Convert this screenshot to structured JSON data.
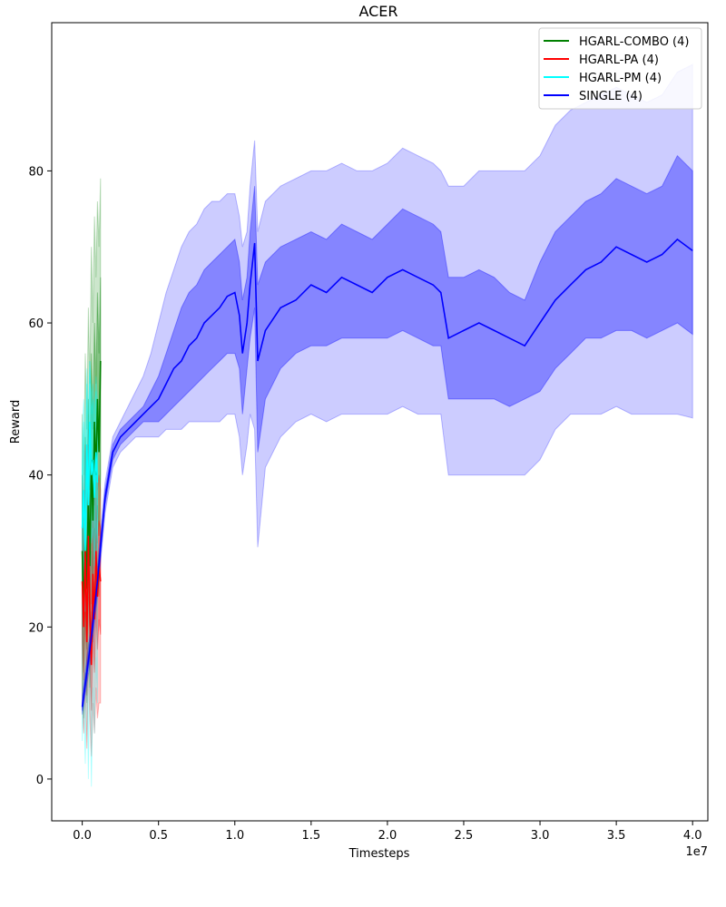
{
  "chart_data": {
    "type": "line",
    "title": "ACER",
    "xlabel": "Timesteps",
    "ylabel": "Reward",
    "x_offset_label": "1e7",
    "xlim": [
      -0.2,
      4.1
    ],
    "ylim": [
      -5.5,
      99.5
    ],
    "x_ticks": [
      0.0,
      0.5,
      1.0,
      1.5,
      2.0,
      2.5,
      3.0,
      3.5,
      4.0
    ],
    "x_tick_labels": [
      "0.0",
      "0.5",
      "1.0",
      "1.5",
      "2.0",
      "2.5",
      "3.0",
      "3.5",
      "4.0"
    ],
    "y_ticks": [
      0,
      20,
      40,
      60,
      80
    ],
    "y_tick_labels": [
      "0",
      "20",
      "40",
      "60",
      "80"
    ],
    "grid": false,
    "legend_position": "top-right",
    "series": [
      {
        "name": "HGARL-COMBO (4)",
        "color": "#008000",
        "x": [
          0.0,
          0.01,
          0.02,
          0.03,
          0.04,
          0.05,
          0.06,
          0.07,
          0.08,
          0.09,
          0.1,
          0.11,
          0.12
        ],
        "y": [
          30,
          21,
          33,
          25,
          38,
          28,
          42,
          34,
          47,
          40,
          50,
          43,
          55
        ],
        "std_low": [
          20,
          14,
          22,
          17,
          26,
          20,
          30,
          24,
          33,
          29,
          36,
          32,
          40
        ],
        "std_high": [
          40,
          30,
          45,
          36,
          50,
          38,
          56,
          46,
          60,
          52,
          64,
          56,
          66
        ],
        "min": [
          12,
          8,
          14,
          10,
          18,
          12,
          22,
          18,
          26,
          22,
          28,
          24,
          32
        ],
        "max": [
          48,
          40,
          56,
          46,
          62,
          52,
          70,
          60,
          74,
          66,
          76,
          70,
          79
        ]
      },
      {
        "name": "HGARL-PA (4)",
        "color": "#ff0000",
        "x": [
          0.0,
          0.01,
          0.02,
          0.03,
          0.04,
          0.05,
          0.06,
          0.07,
          0.08,
          0.09,
          0.1,
          0.11,
          0.12
        ],
        "y": [
          26,
          20,
          30,
          18,
          32,
          22,
          15,
          27,
          21,
          30,
          24,
          28,
          26
        ],
        "std_low": [
          18,
          13,
          22,
          11,
          24,
          15,
          9,
          19,
          14,
          22,
          17,
          21,
          19
        ],
        "std_high": [
          34,
          27,
          38,
          26,
          40,
          30,
          23,
          35,
          29,
          37,
          31,
          34,
          33
        ],
        "min": [
          10,
          6,
          12,
          4,
          14,
          8,
          3,
          10,
          6,
          12,
          8,
          10,
          10
        ],
        "max": [
          40,
          34,
          44,
          32,
          46,
          36,
          30,
          40,
          36,
          42,
          38,
          40,
          38
        ]
      },
      {
        "name": "HGARL-PM (4)",
        "color": "#00ffff",
        "x": [
          0.0,
          0.01,
          0.02,
          0.03,
          0.04,
          0.05,
          0.06,
          0.07,
          0.08,
          0.09,
          0.1
        ],
        "y": [
          33,
          38,
          30,
          44,
          36,
          47,
          40,
          42,
          37,
          43,
          39
        ],
        "std_low": [
          25,
          29,
          22,
          35,
          28,
          38,
          31,
          33,
          28,
          34,
          30
        ],
        "std_high": [
          41,
          47,
          38,
          52,
          44,
          55,
          48,
          50,
          45,
          51,
          47
        ],
        "min": [
          5,
          10,
          2,
          14,
          0,
          18,
          -1,
          12,
          6,
          16,
          10
        ],
        "max": [
          46,
          50,
          44,
          54,
          48,
          55,
          50,
          52,
          48,
          53,
          50
        ]
      },
      {
        "name": "SINGLE (4)",
        "color": "#0000ff",
        "x": [
          0.0,
          0.05,
          0.1,
          0.15,
          0.2,
          0.25,
          0.3,
          0.35,
          0.4,
          0.45,
          0.5,
          0.55,
          0.6,
          0.65,
          0.7,
          0.75,
          0.8,
          0.85,
          0.9,
          0.95,
          1.0,
          1.03,
          1.05,
          1.08,
          1.1,
          1.13,
          1.15,
          1.2,
          1.3,
          1.4,
          1.5,
          1.6,
          1.7,
          1.8,
          1.9,
          2.0,
          2.1,
          2.2,
          2.3,
          2.35,
          2.4,
          2.5,
          2.6,
          2.7,
          2.8,
          2.9,
          3.0,
          3.1,
          3.2,
          3.3,
          3.4,
          3.5,
          3.6,
          3.7,
          3.8,
          3.9,
          4.0
        ],
        "y": [
          9.5,
          17,
          26,
          37,
          43,
          45,
          46,
          47,
          48,
          49,
          50,
          52,
          54,
          55,
          57,
          58,
          60,
          61,
          62,
          63.5,
          64,
          61,
          56,
          60,
          65,
          70.5,
          55,
          59,
          62,
          63,
          65,
          64,
          66,
          65,
          64,
          66,
          67,
          66,
          65,
          64,
          58,
          59,
          60,
          59,
          58,
          57,
          60,
          63,
          65,
          67,
          68,
          70,
          69,
          68,
          69,
          71,
          69.5
        ],
        "std_low": [
          9,
          16,
          25,
          36,
          42,
          44,
          45,
          46,
          47,
          47,
          47,
          48,
          49,
          50,
          51,
          52,
          53,
          54,
          55,
          56,
          56,
          54,
          48,
          54,
          58,
          62,
          43,
          50,
          54,
          56,
          57,
          57,
          58,
          58,
          58,
          58,
          59,
          58,
          57,
          57,
          50,
          50,
          50,
          50,
          49,
          50,
          51,
          54,
          56,
          58,
          58,
          59,
          59,
          58,
          59,
          60,
          58.5
        ],
        "std_high": [
          10,
          18,
          27,
          38,
          44,
          46,
          47,
          48,
          49,
          51,
          53,
          56,
          59,
          62,
          64,
          65,
          67,
          68,
          69,
          70,
          71,
          68,
          63,
          66,
          72,
          78,
          65,
          68,
          70,
          71,
          72,
          71,
          73,
          72,
          71,
          73,
          75,
          74,
          73,
          72,
          66,
          66,
          67,
          66,
          64,
          63,
          68,
          72,
          74,
          76,
          77,
          79,
          78,
          77,
          78,
          82,
          80
        ],
        "min": [
          8.5,
          15,
          24,
          35,
          41,
          43,
          44,
          45,
          45,
          45,
          45,
          46,
          46,
          46,
          47,
          47,
          47,
          47,
          47,
          48,
          48,
          45,
          40,
          44,
          48,
          46,
          30.5,
          41,
          45,
          47,
          48,
          47,
          48,
          48,
          48,
          48,
          49,
          48,
          48,
          48,
          40,
          40,
          40,
          40,
          40,
          40,
          42,
          46,
          48,
          48,
          48,
          49,
          48,
          48,
          48,
          48,
          47.5
        ],
        "max": [
          11,
          19,
          28,
          39,
          45,
          47,
          49,
          51,
          53,
          56,
          60,
          64,
          67,
          70,
          72,
          73,
          75,
          76,
          76,
          77,
          77,
          74,
          70,
          72,
          78,
          84,
          72,
          76,
          78,
          79,
          80,
          80,
          81,
          80,
          80,
          81,
          83,
          82,
          81,
          80,
          78,
          78,
          80,
          80,
          80,
          80,
          82,
          86,
          88,
          89,
          90,
          91,
          90,
          89,
          90,
          93,
          94
        ]
      }
    ]
  }
}
